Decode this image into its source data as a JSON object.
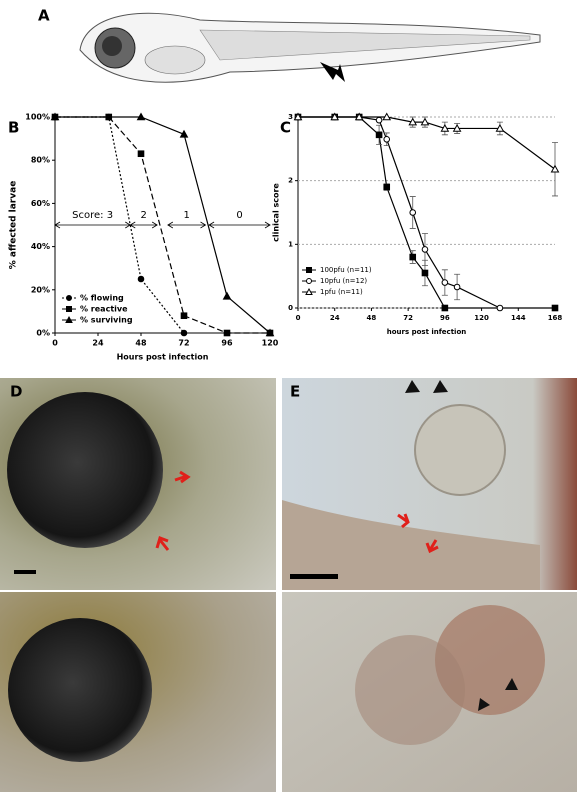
{
  "panel_labels": [
    "A",
    "D",
    "E"
  ],
  "chart_data": [
    {
      "type": "line",
      "title": "B",
      "xlabel": "Hours post infection",
      "ylabel": "% affected larvae",
      "xlim": [
        0,
        120
      ],
      "xticks": [
        0,
        24,
        48,
        72,
        96,
        120
      ],
      "ylim": [
        0,
        100
      ],
      "yticks": [
        {
          "value": 0,
          "label": "0%"
        },
        {
          "value": 20,
          "label": "20%"
        },
        {
          "value": 40,
          "label": "40%"
        },
        {
          "value": 60,
          "label": "60%"
        },
        {
          "value": 80,
          "label": "80%"
        },
        {
          "value": 100,
          "label": "100%"
        }
      ],
      "grid": false,
      "legend": "lower left",
      "annotations": [
        "Score: 3",
        "2",
        "1",
        "0"
      ],
      "series": [
        {
          "name": "% flowing",
          "color": "#000000",
          "marker": "circle",
          "filled": true,
          "dash": "dotted",
          "x": [
            0,
            30,
            48,
            72
          ],
          "values": [
            100,
            100,
            25,
            0
          ]
        },
        {
          "name": "% reactive",
          "color": "#000000",
          "marker": "square",
          "filled": true,
          "dash": "dashed",
          "x": [
            0,
            30,
            48,
            72,
            96,
            120
          ],
          "values": [
            100,
            100,
            83,
            8,
            0,
            0
          ]
        },
        {
          "name": "% surviving",
          "color": "#000000",
          "marker": "triangle",
          "filled": true,
          "dash": "solid",
          "x": [
            0,
            48,
            72,
            96,
            120
          ],
          "values": [
            100,
            100,
            92,
            17,
            0
          ]
        }
      ]
    },
    {
      "type": "line",
      "title": "C",
      "xlabel": "hours post infection",
      "ylabel": "clinical score",
      "xlim": [
        0,
        168
      ],
      "xticks": [
        0,
        24,
        48,
        72,
        96,
        120,
        144,
        168
      ],
      "ylim": [
        0,
        3
      ],
      "yticks": [
        0,
        1,
        2,
        3
      ],
      "grid": true,
      "legend": "lower left",
      "series": [
        {
          "name": "100pfu (n=11)",
          "color": "#000000",
          "marker": "square",
          "filled": true,
          "dash": "solid",
          "x": [
            0,
            24,
            40,
            53,
            58,
            75,
            83,
            96,
            168
          ],
          "values": [
            3,
            3,
            3,
            2.72,
            1.9,
            0.8,
            0.55,
            0,
            0
          ],
          "error": [
            0,
            0,
            0,
            0.15,
            0.05,
            0.1,
            0.2,
            0,
            0
          ]
        },
        {
          "name": "10pfu (n=12)",
          "color": "#000000",
          "marker": "circle",
          "filled": false,
          "dash": "solid",
          "x": [
            0,
            24,
            40,
            53,
            58,
            75,
            83,
            96,
            104,
            132
          ],
          "values": [
            3,
            3,
            3,
            2.95,
            2.65,
            1.5,
            0.92,
            0.4,
            0.33,
            0
          ],
          "error": [
            0,
            0,
            0,
            0,
            0.1,
            0.25,
            0.25,
            0.2,
            0.2,
            0
          ]
        },
        {
          "name": "1pfu (n=11)",
          "color": "#000000",
          "marker": "triangle",
          "filled": false,
          "dash": "solid",
          "x": [
            0,
            24,
            40,
            58,
            75,
            83,
            96,
            104,
            132,
            168
          ],
          "values": [
            3,
            3,
            3,
            3,
            2.92,
            2.92,
            2.82,
            2.82,
            2.82,
            2.18
          ],
          "error": [
            0,
            0,
            0,
            0,
            0.08,
            0.08,
            0.1,
            0.08,
            0.1,
            0.42
          ]
        }
      ]
    }
  ]
}
